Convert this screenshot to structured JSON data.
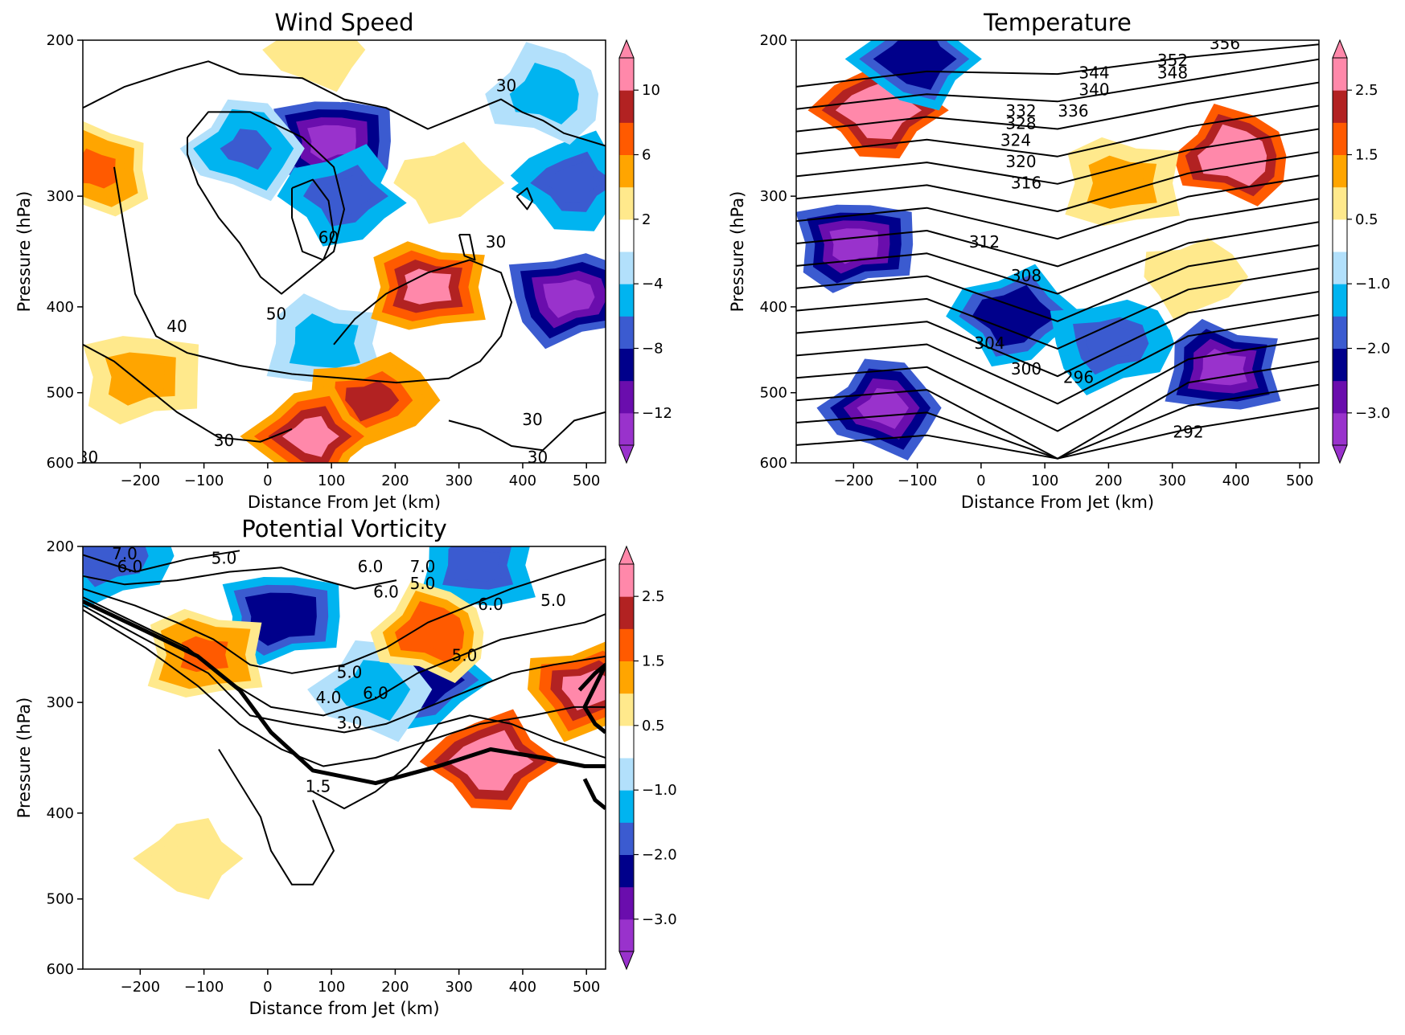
{
  "chart_data": [
    {
      "type": "heatmap",
      "title": "Wind Speed",
      "xlabel": "Distance From Jet (km)",
      "ylabel": "Pressure (hPa)",
      "xlim": [
        -290,
        530
      ],
      "ylim": [
        600,
        200
      ],
      "y_scale": "log",
      "x_ticks": [
        "−200",
        "−100",
        "0",
        "100",
        "200",
        "300",
        "400",
        "500"
      ],
      "y_ticks": [
        "200",
        "300",
        "400",
        "500",
        "600"
      ],
      "colorbar": {
        "levels": [
          -14,
          -12,
          -10,
          -8,
          -6,
          -4,
          -2,
          2,
          4,
          6,
          8,
          10,
          12
        ],
        "tick_labels": [
          "−12",
          "−8",
          "−4",
          "2",
          "6",
          "10"
        ],
        "extend": "both"
      },
      "contour_labels": [
        "30",
        "30",
        "30",
        "40",
        "50",
        "60",
        "30",
        "30",
        "30"
      ],
      "shading_blobs": [
        {
          "x": 100,
          "p": 260,
          "v": -13
        },
        {
          "x": 120,
          "p": 300,
          "v": -8
        },
        {
          "x": -30,
          "p": 265,
          "v": -7
        },
        {
          "x": 90,
          "p": 440,
          "v": -5
        },
        {
          "x": 470,
          "p": 390,
          "v": -13
        },
        {
          "x": 480,
          "p": 290,
          "v": -8
        },
        {
          "x": 440,
          "p": 230,
          "v": -5
        },
        {
          "x": 250,
          "p": 380,
          "v": 11
        },
        {
          "x": 160,
          "p": 510,
          "v": 8
        },
        {
          "x": 70,
          "p": 560,
          "v": 11
        },
        {
          "x": -270,
          "p": 280,
          "v": 7
        },
        {
          "x": -200,
          "p": 480,
          "v": 5
        },
        {
          "x": 280,
          "p": 290,
          "v": 3
        },
        {
          "x": 80,
          "p": 205,
          "v": 3
        }
      ]
    },
    {
      "type": "heatmap",
      "title": "Temperature",
      "xlabel": "Distance From Jet (km)",
      "ylabel": "Pressure (hPa)",
      "xlim": [
        -290,
        530
      ],
      "ylim": [
        600,
        200
      ],
      "y_scale": "log",
      "x_ticks": [
        "−200",
        "−100",
        "0",
        "100",
        "200",
        "300",
        "400",
        "500"
      ],
      "y_ticks": [
        "200",
        "300",
        "400",
        "500",
        "600"
      ],
      "colorbar": {
        "levels": [
          -3.5,
          -3.0,
          -2.5,
          -2.0,
          -1.5,
          -1.0,
          -0.5,
          0.5,
          1.0,
          1.5,
          2.0,
          2.5,
          3.0
        ],
        "tick_labels": [
          "−3.0",
          "−2.0",
          "−1.0",
          "0.5",
          "1.5",
          "2.5"
        ],
        "extend": "both"
      },
      "contour_labels": [
        "356",
        "352",
        "348",
        "344",
        "340",
        "336",
        "332",
        "328",
        "324",
        "320",
        "316",
        "312",
        "308",
        "304",
        "300",
        "296",
        "292"
      ],
      "shading_blobs": [
        {
          "x": -200,
          "p": 340,
          "v": -3.2
        },
        {
          "x": 50,
          "p": 410,
          "v": -2.5
        },
        {
          "x": -150,
          "p": 520,
          "v": -3.2
        },
        {
          "x": 380,
          "p": 470,
          "v": -3.2
        },
        {
          "x": 200,
          "p": 440,
          "v": -2.0
        },
        {
          "x": -160,
          "p": 240,
          "v": 3.0
        },
        {
          "x": 400,
          "p": 270,
          "v": 3.0
        },
        {
          "x": 220,
          "p": 290,
          "v": 1.2
        },
        {
          "x": 330,
          "p": 370,
          "v": 0.8
        },
        {
          "x": -100,
          "p": 210,
          "v": -2.5
        }
      ]
    },
    {
      "type": "heatmap",
      "title": "Potential Vorticity",
      "xlabel": "Distance from Jet (km)",
      "ylabel": "Pressure (hPa)",
      "xlim": [
        -290,
        530
      ],
      "ylim": [
        600,
        200
      ],
      "y_scale": "log",
      "x_ticks": [
        "−200",
        "−100",
        "0",
        "100",
        "200",
        "300",
        "400",
        "500"
      ],
      "y_ticks": [
        "200",
        "300",
        "400",
        "500",
        "600"
      ],
      "colorbar": {
        "levels": [
          -3.5,
          -3.0,
          -2.5,
          -2.0,
          -1.5,
          -1.0,
          -0.5,
          0.5,
          1.0,
          1.5,
          2.0,
          2.5,
          3.0
        ],
        "tick_labels": [
          "−3.0",
          "−2.0",
          "−1.0",
          "0.5",
          "1.5",
          "2.5"
        ],
        "extend": "both"
      },
      "contour_labels": [
        "7.0",
        "6.0",
        "5.0",
        "6.0",
        "5.0",
        "6.0",
        "7.0",
        "6.0",
        "5.0",
        "5.0",
        "5.0",
        "6.0",
        "4.0",
        "3.0",
        "1.5"
      ],
      "shading_blobs": [
        {
          "x": 20,
          "p": 240,
          "v": -2.5
        },
        {
          "x": 240,
          "p": 283,
          "v": -2.5
        },
        {
          "x": 170,
          "p": 290,
          "v": -1.2
        },
        {
          "x": 330,
          "p": 210,
          "v": -2.0
        },
        {
          "x": -250,
          "p": 205,
          "v": -2.0
        },
        {
          "x": 350,
          "p": 350,
          "v": 3.0
        },
        {
          "x": 260,
          "p": 250,
          "v": 1.8
        },
        {
          "x": -100,
          "p": 265,
          "v": 1.5
        },
        {
          "x": 500,
          "p": 290,
          "v": 2.5
        },
        {
          "x": -120,
          "p": 450,
          "v": 0.8
        }
      ]
    }
  ]
}
